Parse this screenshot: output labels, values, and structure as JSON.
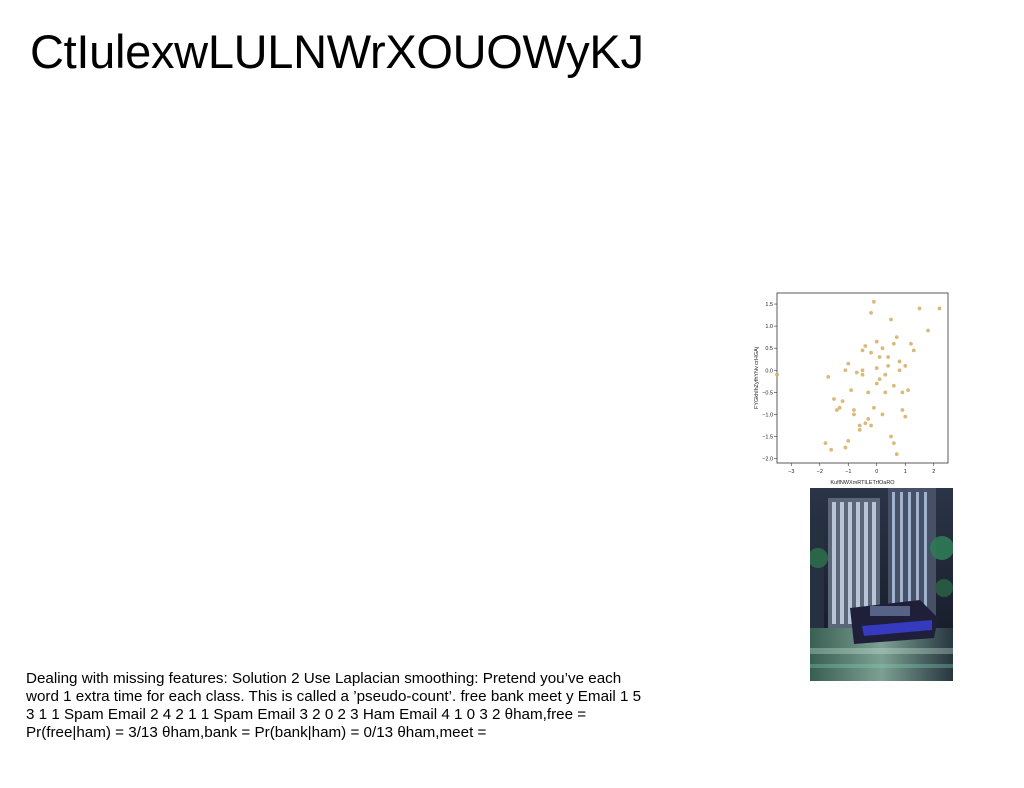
{
  "slide": {
    "title": "CtIulexwLULNWrXOUOWyKJ",
    "body": "Dealing with missing features: Solution 2 Use Laplacian smoothing: Pretend you’ve each word 1 extra time for each class. This is called a ’pseudo-count’. free bank meet y Email 1 5 3 1 1 Spam Email 2 4 2 1 1 Spam Email 3 2 0 2 3 Ham Email 4 1 0 3 2 θham,free = Pr(free|ham) = 3/13 θham,bank = Pr(bank|ham) = 0/13 θham,meet ="
  },
  "chart_data": {
    "type": "scatter",
    "title": "",
    "xlabel": "KuflNWXmRTlLETrfOaRO",
    "ylabel": "FYGkhIhZyfhYNv crHGAj",
    "xlim": [
      -3.5,
      2.5
    ],
    "ylim": [
      -2.1,
      1.75
    ],
    "xticks": [
      -3,
      -2,
      -1,
      0,
      1,
      2
    ],
    "yticks": [
      -2.0,
      -1.5,
      -1.0,
      -0.5,
      0.0,
      0.5,
      1.0,
      1.5
    ],
    "point_color": "#d4b46a",
    "x": [
      -3.5,
      -1.7,
      -1.5,
      -1.3,
      -1.2,
      -1.1,
      -1.0,
      -0.8,
      -0.6,
      -0.5,
      -0.5,
      -0.4,
      -0.3,
      -0.2,
      -0.1,
      0.0,
      0.0,
      0.1,
      0.2,
      0.3,
      0.4,
      0.5,
      0.6,
      0.7,
      0.8,
      0.9,
      1.0,
      1.1,
      1.3,
      1.5,
      1.8,
      2.2,
      -1.8,
      -1.4,
      -1.0,
      -0.7,
      -0.3,
      0.0,
      0.3,
      0.6,
      1.0,
      -0.9,
      -0.5,
      -0.1,
      0.5,
      0.9,
      -0.6,
      -0.2,
      0.4,
      0.8,
      -1.6,
      -1.1,
      -0.4,
      0.2,
      0.6,
      -0.8,
      0.1,
      1.2,
      -0.2,
      0.7
    ],
    "y": [
      -0.1,
      -0.15,
      -0.65,
      -0.85,
      -0.7,
      0.0,
      0.15,
      -0.9,
      -1.35,
      -0.1,
      0.45,
      0.55,
      -0.5,
      -1.25,
      1.55,
      0.05,
      -0.3,
      -0.2,
      0.5,
      -0.5,
      0.3,
      1.15,
      0.6,
      0.75,
      0.0,
      -0.9,
      -1.05,
      -0.45,
      0.45,
      1.4,
      0.9,
      1.4,
      -1.65,
      -0.9,
      -1.6,
      -0.05,
      -1.1,
      0.65,
      -0.1,
      -0.35,
      0.1,
      -0.45,
      0.0,
      -0.85,
      -1.5,
      -0.5,
      -1.25,
      0.4,
      0.1,
      0.2,
      -1.8,
      -1.75,
      -1.2,
      -1.0,
      -1.65,
      -1.0,
      0.3,
      0.6,
      1.3,
      -1.9
    ]
  },
  "photo": {
    "subject": "night street scene with tall illuminated buildings and a blurred car"
  }
}
